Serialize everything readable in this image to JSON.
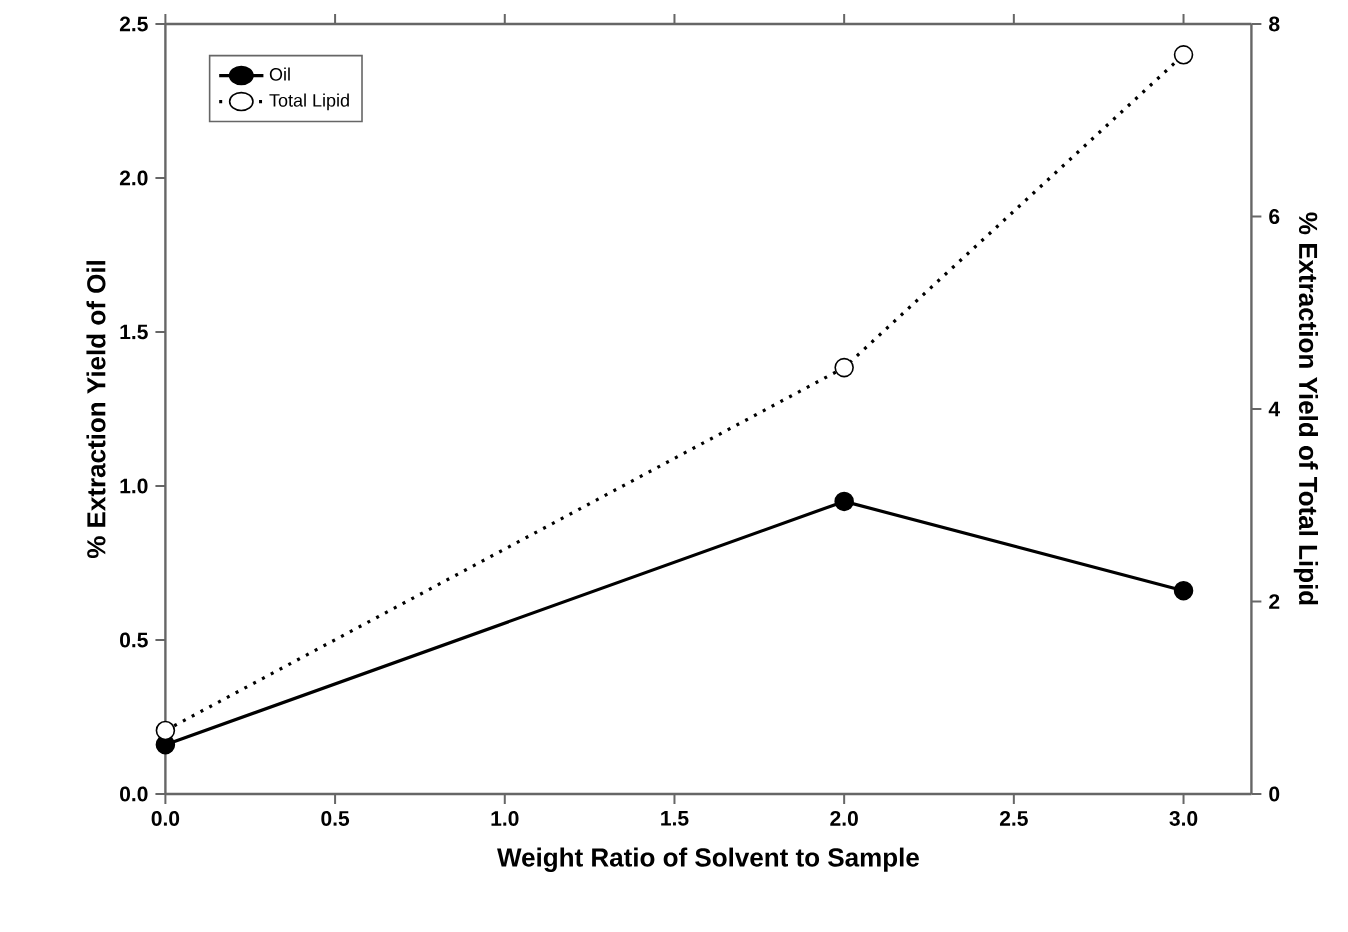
{
  "chart_data": {
    "type": "line",
    "xlabel": "Weight Ratio of Solvent to Sample",
    "ylabel": "% Extraction Yield of Oil",
    "y2label": "% Extraction Yield of Total Lipid",
    "x": [
      0,
      2,
      3
    ],
    "series": [
      {
        "name": "Oil",
        "color": "#000000",
        "values": [
          0.16,
          0.95,
          0.66
        ],
        "line_style": "solid"
      },
      {
        "name": "Total Lipid",
        "color": "#000000",
        "values": [
          0.66,
          4.43,
          7.68
        ],
        "axis": "y2",
        "line_style": "dotted"
      }
    ],
    "xlim": [
      0,
      3.2
    ],
    "xticks": [
      {
        "value": 0,
        "label": "0.0"
      },
      0.5,
      {
        "value": 1,
        "label": "1.0"
      },
      1.5,
      {
        "value": 2,
        "label": "2.0"
      },
      2.5,
      {
        "value": 3,
        "label": "3.0"
      }
    ],
    "ylim": [
      0,
      2.5
    ],
    "yticks": [
      {
        "value": 0,
        "label": "0.0"
      },
      0.5,
      {
        "value": 1,
        "label": "1.0"
      },
      1.5,
      {
        "value": 2,
        "label": "2.0"
      },
      2.5
    ],
    "y2lim": [
      0,
      8
    ],
    "y2ticks": [
      0,
      2,
      4,
      6,
      8
    ],
    "marker": "circle",
    "legend": "top left",
    "grid": false
  }
}
